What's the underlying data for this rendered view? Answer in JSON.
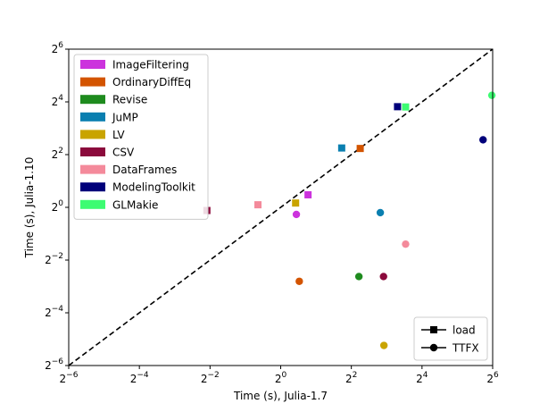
{
  "chart_data": {
    "type": "scatter",
    "xlabel": "Time (s), Julia-1.7",
    "ylabel": "Time (s), Julia-1.10",
    "scale": "log2",
    "xlim": [
      0.015625,
      64
    ],
    "ylim": [
      0.015625,
      64
    ],
    "x_ticks": [
      {
        "base": "2",
        "exp": "−6"
      },
      {
        "base": "2",
        "exp": "−4"
      },
      {
        "base": "2",
        "exp": "−2"
      },
      {
        "base": "2",
        "exp": "0"
      },
      {
        "base": "2",
        "exp": "2"
      },
      {
        "base": "2",
        "exp": "4"
      },
      {
        "base": "2",
        "exp": "6"
      }
    ],
    "y_ticks": [
      {
        "base": "2",
        "exp": "−6"
      },
      {
        "base": "2",
        "exp": "−4"
      },
      {
        "base": "2",
        "exp": "−2"
      },
      {
        "base": "2",
        "exp": "0"
      },
      {
        "base": "2",
        "exp": "2"
      },
      {
        "base": "2",
        "exp": "4"
      },
      {
        "base": "2",
        "exp": "6"
      }
    ],
    "reference_line": "y = x (dashed)",
    "series": [
      {
        "name": "ImageFiltering",
        "color": "#cc33dd",
        "load": [
          1.71,
          1.39
        ],
        "ttfx": [
          1.36,
          0.83
        ]
      },
      {
        "name": "OrdinaryDiffEq",
        "color": "#d35400",
        "load": [
          4.76,
          4.7
        ],
        "ttfx": [
          1.44,
          0.143
        ]
      },
      {
        "name": "Revise",
        "color": "#1e8b1e",
        "load": null,
        "ttfx": [
          4.64,
          0.162
        ]
      },
      {
        "name": "JuMP",
        "color": "#0a7fb0",
        "load": [
          3.31,
          4.76
        ],
        "ttfx": [
          7.06,
          0.87
        ]
      },
      {
        "name": "LV",
        "color": "#c9a400",
        "load": [
          1.34,
          1.12
        ],
        "ttfx": [
          7.58,
          0.0265
        ]
      },
      {
        "name": "CSV",
        "color": "#8b0a3c",
        "load": [
          0.235,
          0.92
        ],
        "ttfx": [
          7.52,
          0.162
        ]
      },
      {
        "name": "DataFrames",
        "color": "#f48a9b",
        "load": [
          0.64,
          1.07
        ],
        "ttfx": [
          11.6,
          0.38
        ]
      },
      {
        "name": "ModelingToolkit",
        "color": "#00007a",
        "load": [
          9.9,
          14.1
        ],
        "ttfx": [
          53.0,
          5.9
        ]
      },
      {
        "name": "GLMakie",
        "color": "#3dfc72",
        "load": [
          11.6,
          14.0
        ],
        "ttfx": [
          63.0,
          19.0
        ]
      }
    ],
    "marker_legend": [
      {
        "label": "load",
        "marker": "square"
      },
      {
        "label": "TTFX",
        "marker": "circle"
      }
    ],
    "legend_positions": [
      "top-left",
      "bottom-right"
    ],
    "grid": false
  }
}
